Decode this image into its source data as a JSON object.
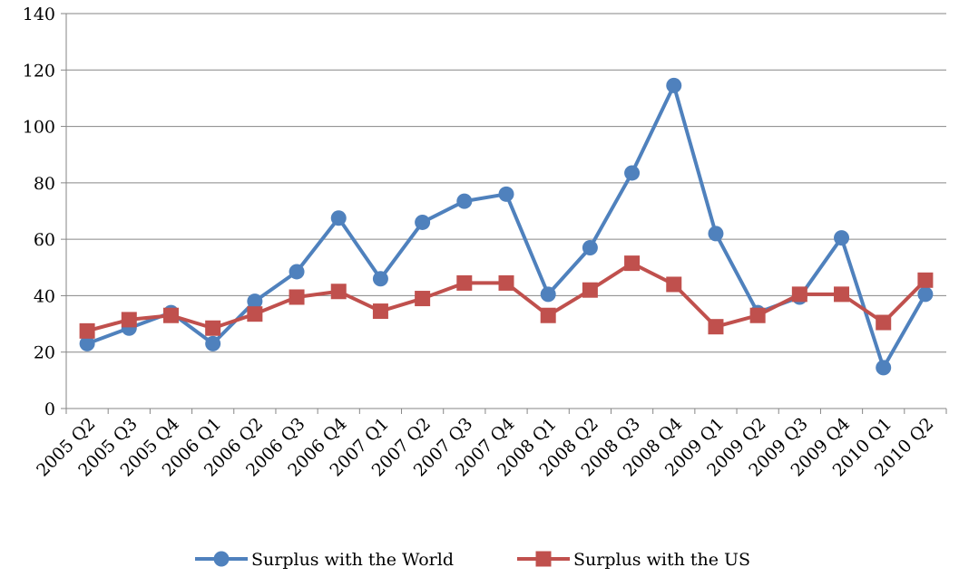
{
  "chart_data": {
    "type": "line",
    "title": "",
    "xlabel": "",
    "ylabel": "",
    "categories": [
      "2005 Q2",
      "2005 Q3",
      "2005 Q4",
      "2006 Q1",
      "2006 Q2",
      "2006 Q3",
      "2006 Q4",
      "2007 Q1",
      "2007 Q2",
      "2007 Q3",
      "2007 Q4",
      "2008 Q1",
      "2008 Q2",
      "2008 Q3",
      "2008 Q4",
      "2009 Q1",
      "2009 Q2",
      "2009 Q3",
      "2009 Q4",
      "2010 Q1",
      "2010 Q2"
    ],
    "ylim": [
      0,
      140
    ],
    "yticks": [
      "0",
      "20",
      "40",
      "60",
      "80",
      "100",
      "120",
      "140"
    ],
    "grid": "horizontal",
    "legend": "bottom",
    "series": [
      {
        "name": "Surplus with the World",
        "color": "#4F81BD",
        "marker": "circle",
        "values": [
          23,
          28.5,
          34,
          23,
          38,
          48.5,
          67.5,
          46,
          66,
          73.5,
          76,
          40.5,
          57,
          83.5,
          114.5,
          62,
          34,
          39.5,
          60.5,
          14.5,
          40.5
        ]
      },
      {
        "name": "Surplus with the US",
        "color": "#C0504D",
        "marker": "square",
        "values": [
          27.5,
          31.5,
          33,
          28.5,
          33.5,
          39.5,
          41.5,
          34.5,
          39,
          44.5,
          44.5,
          33,
          42,
          51.5,
          44,
          29,
          33,
          40.5,
          40.5,
          30.5,
          45.5
        ]
      }
    ]
  }
}
